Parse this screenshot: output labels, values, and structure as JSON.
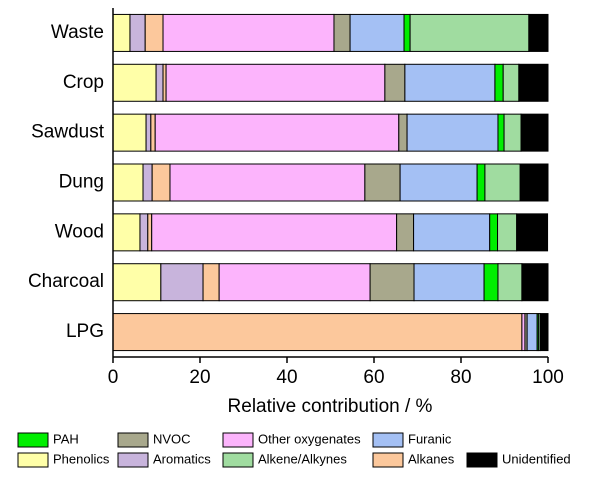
{
  "chart_data": {
    "type": "stacked-barh",
    "xlabel": "Relative contribution / %",
    "categories": [
      "Waste",
      "Crop",
      "Sawdust",
      "Dung",
      "Wood",
      "Charcoal",
      "LPG"
    ],
    "xlim": [
      0,
      100
    ],
    "xticks": [
      0,
      20,
      40,
      60,
      80,
      100
    ],
    "series": [
      {
        "name": "Phenolics",
        "color": "#ffffa8",
        "values": [
          3.9,
          9.9,
          7.6,
          6.9,
          6.2,
          11.0,
          0
        ]
      },
      {
        "name": "Aromatics",
        "color": "#c8b4dc",
        "values": [
          3.5,
          1.6,
          1.1,
          2.1,
          1.8,
          9.7,
          0
        ]
      },
      {
        "name": "Alkanes",
        "color": "#fcc89c",
        "values": [
          4.1,
          0.7,
          1.0,
          4.1,
          0.9,
          3.7,
          94.0
        ]
      },
      {
        "name": "Other oxygenates",
        "color": "#fcb4fc",
        "values": [
          39.3,
          50.3,
          56.0,
          44.8,
          56.3,
          34.7,
          0.7
        ]
      },
      {
        "name": "NVOC",
        "color": "#a8a88c",
        "values": [
          3.7,
          4.6,
          1.9,
          8.1,
          3.9,
          10.1,
          0.5
        ]
      },
      {
        "name": "Furanic",
        "color": "#a4c0f4",
        "values": [
          12.4,
          20.7,
          20.9,
          17.7,
          17.5,
          16.1,
          2.3
        ]
      },
      {
        "name": "PAH",
        "color": "#00ee00",
        "values": [
          1.4,
          1.9,
          1.4,
          1.8,
          1.8,
          3.2,
          0.3
        ]
      },
      {
        "name": "Alkene/Alkynes",
        "color": "#a0dca0",
        "values": [
          27.3,
          3.6,
          3.9,
          8.1,
          4.4,
          5.5,
          0.4
        ]
      },
      {
        "name": "Unidentified",
        "color": "#000000",
        "values": [
          4.4,
          6.7,
          6.2,
          6.4,
          7.1,
          6.0,
          1.8
        ]
      }
    ]
  }
}
